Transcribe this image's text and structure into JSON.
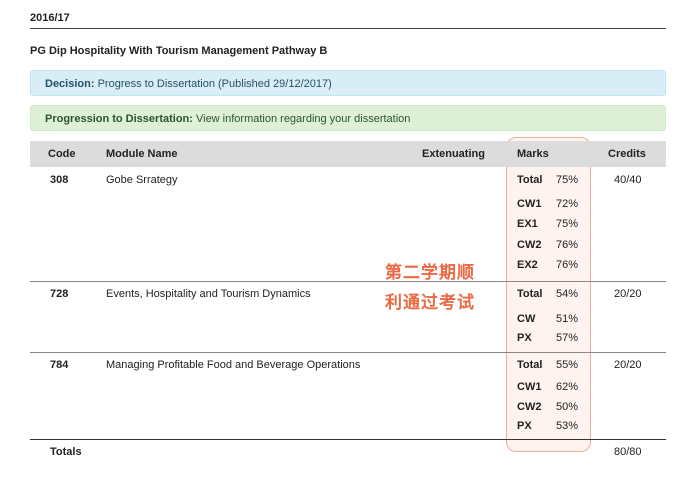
{
  "year": "2016/17",
  "programme": "PG Dip Hospitality With Tourism Management Pathway B",
  "decision": {
    "label": "Decision:",
    "text": "Progress to Dissertation (Published 29/12/2017)"
  },
  "progression": {
    "label": "Progression to Dissertation:",
    "text": "View information regarding your dissertation"
  },
  "table": {
    "headers": {
      "code": "Code",
      "module": "Module Name",
      "extenuating": "Extenuating",
      "marks": "Marks",
      "credits": "Credits"
    },
    "rows": [
      {
        "code": "308",
        "name": "Gobe Srrategy",
        "credits": "40/40",
        "marks": [
          {
            "label": "Total",
            "value": "75%"
          },
          {
            "label": "CW1",
            "value": "72%"
          },
          {
            "label": "EX1",
            "value": "75%"
          },
          {
            "label": "CW2",
            "value": "76%"
          },
          {
            "label": "EX2",
            "value": "76%"
          }
        ]
      },
      {
        "code": "728",
        "name": "Events, Hospitality and Tourism Dynamics",
        "credits": "20/20",
        "marks": [
          {
            "label": "Total",
            "value": "54%"
          },
          {
            "label": "CW",
            "value": "51%"
          },
          {
            "label": "PX",
            "value": "57%"
          }
        ]
      },
      {
        "code": "784",
        "name": "Managing Profitable Food and Beverage Operations",
        "credits": "20/20",
        "marks": [
          {
            "label": "Total",
            "value": "55%"
          },
          {
            "label": "CW1",
            "value": "62%"
          },
          {
            "label": "CW2",
            "value": "50%"
          },
          {
            "label": "PX",
            "value": "53%"
          }
        ]
      }
    ],
    "totals": {
      "label": "Totals",
      "credits": "80/80"
    }
  },
  "annotation": {
    "line1": "第二学期顺",
    "line2": "利通过考试",
    "color": "#ea6a43"
  }
}
